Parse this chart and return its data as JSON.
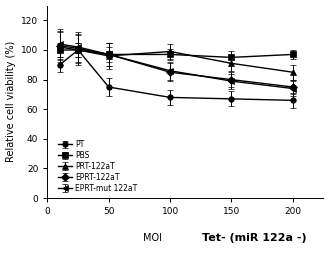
{
  "x": [
    10,
    25,
    50,
    100,
    150,
    200
  ],
  "series": [
    {
      "key": "PT",
      "y": [
        90,
        100,
        75,
        68,
        67,
        66
      ],
      "yerr": [
        5,
        5,
        6,
        5,
        5,
        5
      ],
      "marker": "o",
      "label": "PT"
    },
    {
      "key": "PBS",
      "y": [
        100,
        100,
        97,
        97,
        95,
        97
      ],
      "yerr": [
        5,
        5,
        5,
        4,
        4,
        3
      ],
      "marker": "s",
      "label": "PBS"
    },
    {
      "key": "PRT-122aT",
      "y": [
        102,
        100,
        96,
        99,
        91,
        85
      ],
      "yerr": [
        10,
        10,
        9,
        5,
        5,
        5
      ],
      "marker": "^",
      "label": "PRT-122aT"
    },
    {
      "key": "EPRT-122aT",
      "y": [
        103,
        101,
        97,
        85,
        80,
        75
      ],
      "yerr": [
        10,
        10,
        8,
        6,
        5,
        5
      ],
      "marker": "D",
      "label": "EPRT-122aT"
    },
    {
      "key": "EPRT-mut 122aT",
      "y": [
        104,
        102,
        97,
        86,
        79,
        74
      ],
      "yerr": [
        10,
        10,
        8,
        6,
        5,
        5
      ],
      "marker": "<",
      "label": "EPRT-mut 122aT"
    }
  ],
  "xlabel": "MOI",
  "xlabel2": "Tet- (miR 122a -)",
  "ylabel": "Relative cell viability (%)",
  "xlim": [
    0,
    225
  ],
  "ylim": [
    0,
    130
  ],
  "yticks": [
    0,
    20,
    40,
    60,
    80,
    100,
    120
  ],
  "xticks": [
    0,
    50,
    100,
    150,
    200
  ],
  "color": "black",
  "linewidth": 1.0,
  "markersize": 4,
  "legend_fontsize": 5.5,
  "axis_fontsize": 7,
  "tick_fontsize": 6.5
}
